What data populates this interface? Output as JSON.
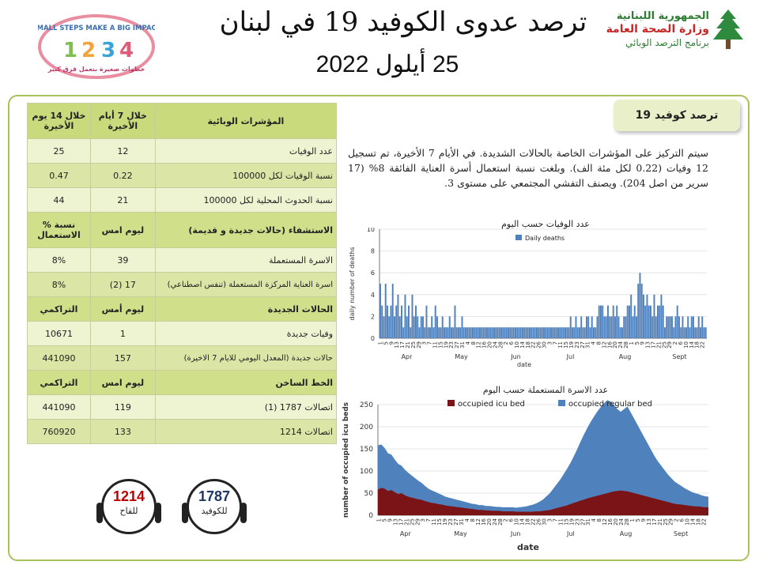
{
  "header": {
    "title": "ترصد عدوى الكوفيد 19 في لبنان",
    "date": "25 أيلول 2022",
    "ministry_line1": "الجمهورية اللبنانية",
    "ministry_line2": "وزارة الصحة العامة",
    "ministry_line3": "برنامج الترصد الوبائي",
    "campaign_en": "SMALL STEPS MAKE A BIG IMPACT",
    "campaign_ar": "خطوات صغيرة بتعمل فرق كبير",
    "campaign_digits": [
      "1",
      "2",
      "3",
      "4"
    ]
  },
  "table": {
    "header": {
      "col14": "خلال 14 يوم الأخيرة",
      "col7": "خلال 7 أيام الأخيرة",
      "label": "المؤشرات الوبائية"
    },
    "rows_indicators": [
      {
        "label": "عدد الوفيات",
        "v7": "12",
        "v14": "25"
      },
      {
        "label": "نسبة الوفيات لكل 100000",
        "v7": "0.22",
        "v14": "0.47"
      },
      {
        "label": "نسبة الحدوث المحلية لكل 100000",
        "v7": "21",
        "v14": "44"
      }
    ],
    "hosp_header": {
      "label": "الاستشفاء (حالات جديدة و قديمة)",
      "c1": "ليوم امس",
      "c2": "% نسبة الاستعمال"
    },
    "rows_hosp": [
      {
        "label": "الاسرة المستعملة",
        "v1": "39",
        "v2": "8%"
      },
      {
        "label": "اسرة العناية المركزة المستعملة (تنفس اصطناعي)",
        "v1": "(2) 17",
        "v2": "8%"
      }
    ],
    "new_header": {
      "label": "الحالات الجديدة",
      "c1": "ليوم أمس",
      "c2": "التراكمي"
    },
    "rows_new": [
      {
        "label": "وفيات جديدة",
        "v1": "1",
        "v2": "10671"
      },
      {
        "label": "حالات جديدة (المعدل اليومي للايام 7 الاخيرة)",
        "v1": "157",
        "v2": "441090"
      }
    ],
    "hot_header": {
      "label": "الخط الساخن",
      "c1": "ليوم امس",
      "c2": "التراكمي"
    },
    "rows_hot": [
      {
        "label": "اتصالات 1787 (1)",
        "v1": "119",
        "v2": "441090"
      },
      {
        "label": "اتصالات 1214",
        "v1": "133",
        "v2": "760920"
      }
    ]
  },
  "panel": {
    "badge": "ترصد كوفيد 19",
    "summary": "سيتم التركيز على المؤشرات الخاصة بالحالات الشديدة. في الأيام 7 الأخيرة، تم تسجيل 12 وفيات (0.22 لكل مئة الف). وبلغت نسبة استعمال أسرة العناية الفائقة 8% (17 سرير من اصل 204). ويصنف التفشي المجتمعي على مستوى 3."
  },
  "hotlines": {
    "vaccine": {
      "number": "1214",
      "caption": "للقاح",
      "color": "#c00000"
    },
    "covid": {
      "number": "1787",
      "caption": "للكوفيد",
      "color": "#1f3864"
    }
  },
  "chart_data": [
    {
      "type": "bar",
      "title": "عدد الوفيات حسب اليوم",
      "xlabel": "date",
      "ylabel": "daily number of deaths",
      "ylim": [
        0,
        10
      ],
      "yticks": [
        0,
        2,
        4,
        6,
        8,
        10
      ],
      "legend": "top-left",
      "series": [
        {
          "name": "Daily deaths",
          "color": "#4f81bd",
          "values": [
            5,
            3,
            2,
            5,
            3,
            2,
            3,
            5,
            2,
            3,
            4,
            2,
            3,
            1,
            4,
            2,
            3,
            1,
            4,
            2,
            3,
            2,
            1,
            2,
            2,
            1,
            3,
            1,
            1,
            2,
            1,
            3,
            2,
            1,
            1,
            2,
            1,
            1,
            1,
            2,
            1,
            1,
            3,
            1,
            1,
            1,
            2,
            1,
            1,
            1,
            1,
            1,
            1,
            1,
            1,
            1,
            1,
            1,
            1,
            1,
            1,
            1,
            1,
            1,
            1,
            1,
            1,
            1,
            1,
            1,
            1,
            1,
            1,
            1,
            1,
            1,
            1,
            1,
            1,
            1,
            1,
            1,
            1,
            1,
            1,
            1,
            1,
            1,
            1,
            1,
            1,
            1,
            1,
            1,
            1,
            1,
            1,
            1,
            1,
            1,
            1,
            1,
            1,
            1,
            1,
            1,
            1,
            2,
            1,
            1,
            2,
            1,
            1,
            2,
            1,
            1,
            2,
            2,
            1,
            2,
            1,
            1,
            2,
            3,
            3,
            3,
            2,
            2,
            3,
            2,
            2,
            3,
            2,
            3,
            2,
            1,
            1,
            2,
            2,
            3,
            3,
            4,
            2,
            3,
            2,
            5,
            6,
            5,
            4,
            3,
            4,
            3,
            3,
            2,
            4,
            2,
            3,
            3,
            4,
            3,
            1,
            2,
            2,
            2,
            2,
            1,
            2,
            3,
            2,
            1,
            2,
            1,
            1,
            2,
            1,
            2,
            2,
            1,
            1,
            2,
            1,
            2,
            1,
            1
          ]
        }
      ],
      "x_labels": [
        "1",
        "5",
        "9",
        "13",
        "17",
        "21",
        "25",
        "29",
        "3",
        "7",
        "11",
        "15",
        "19",
        "23",
        "27",
        "31",
        "4",
        "8",
        "12",
        "16",
        "20",
        "24",
        "28",
        "2",
        "6",
        "10",
        "14",
        "18",
        "22",
        "26",
        "30",
        "3",
        "7",
        "11",
        "15",
        "19",
        "23",
        "27",
        "31",
        "4",
        "8",
        "12",
        "16",
        "20",
        "24",
        "28",
        "1",
        "5",
        "9",
        "13",
        "17",
        "21",
        "25",
        "29",
        "2",
        "6",
        "10",
        "14",
        "18",
        "22"
      ],
      "months": [
        "Apr",
        "May",
        "Jun",
        "Jul",
        "Aug",
        "Sept"
      ]
    },
    {
      "type": "area",
      "title": "عدد الاسرة المستعملة حسب اليوم",
      "xlabel": "date",
      "ylabel": "number of occupied icu beds",
      "ylim": [
        0,
        250
      ],
      "yticks": [
        0,
        50,
        100,
        150,
        200,
        250
      ],
      "legend": "top",
      "series": [
        {
          "name": "occupied icu bed",
          "color": "#7b1417",
          "values": [
            58,
            62,
            60,
            55,
            57,
            52,
            48,
            50,
            45,
            42,
            40,
            38,
            36,
            35,
            32,
            30,
            28,
            27,
            25,
            24,
            22,
            21,
            20,
            19,
            18,
            17,
            16,
            15,
            14,
            13,
            12,
            12,
            11,
            11,
            10,
            10,
            10,
            9,
            9,
            9,
            9,
            8,
            8,
            8,
            8,
            8,
            8,
            9,
            9,
            10,
            11,
            12,
            14,
            16,
            18,
            20,
            22,
            25,
            28,
            30,
            33,
            35,
            38,
            40,
            42,
            44,
            46,
            48,
            50,
            52,
            54,
            55,
            56,
            55,
            54,
            52,
            50,
            48,
            46,
            44,
            42,
            40,
            38,
            36,
            34,
            32,
            30,
            28,
            26,
            25,
            24,
            23,
            22,
            21,
            20,
            20,
            19,
            18,
            18
          ]
        },
        {
          "name": "occupied regular bed",
          "color": "#4f81bd",
          "values": [
            100,
            98,
            92,
            85,
            80,
            74,
            68,
            62,
            58,
            54,
            50,
            46,
            42,
            38,
            34,
            30,
            28,
            26,
            24,
            22,
            20,
            19,
            18,
            17,
            16,
            15,
            14,
            13,
            12,
            12,
            11,
            11,
            10,
            10,
            10,
            9,
            9,
            9,
            9,
            9,
            9,
            9,
            10,
            11,
            12,
            14,
            16,
            18,
            22,
            26,
            32,
            38,
            46,
            54,
            62,
            72,
            82,
            92,
            104,
            118,
            132,
            146,
            158,
            170,
            180,
            190,
            198,
            205,
            210,
            205,
            195,
            185,
            178,
            185,
            192,
            180,
            168,
            156,
            144,
            132,
            120,
            108,
            96,
            86,
            78,
            70,
            62,
            56,
            50,
            46,
            42,
            38,
            35,
            32,
            30,
            28,
            26,
            25,
            24
          ]
        }
      ],
      "x_labels": [
        "1",
        "5",
        "9",
        "13",
        "17",
        "21",
        "25",
        "29",
        "3",
        "7",
        "11",
        "15",
        "19",
        "23",
        "27",
        "31",
        "4",
        "8",
        "12",
        "16",
        "20",
        "24",
        "28",
        "2",
        "6",
        "10",
        "14",
        "18",
        "22",
        "26",
        "30",
        "3",
        "7",
        "11",
        "15",
        "19",
        "23",
        "27",
        "31",
        "4",
        "8",
        "12",
        "16",
        "20",
        "24",
        "28",
        "1",
        "5",
        "9",
        "13",
        "17",
        "21",
        "25",
        "29",
        "2",
        "6",
        "10",
        "14",
        "18",
        "22"
      ],
      "months": [
        "Apr",
        "May",
        "Jun",
        "Jul",
        "Aug",
        "Sept"
      ]
    }
  ]
}
